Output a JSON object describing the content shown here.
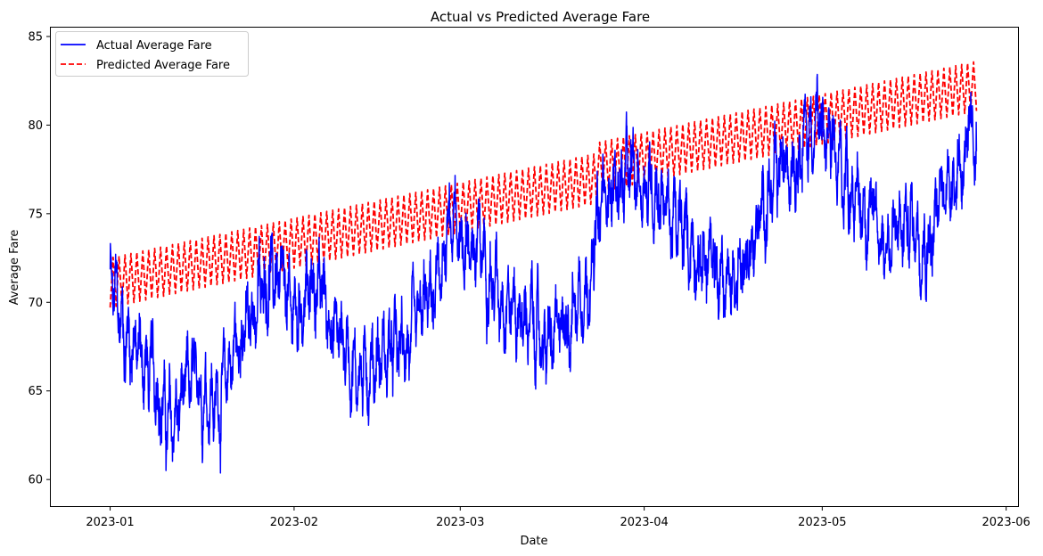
{
  "chart_data": {
    "type": "line",
    "title": "Actual vs Predicted Average Fare",
    "xlabel": "Date",
    "ylabel": "Average Fare",
    "x_range": [
      "2022-12-22",
      "2023-06-03"
    ],
    "xlim": [
      -10,
      153
    ],
    "ylim": [
      58.5,
      85.5
    ],
    "x_ticks": [
      {
        "day": 0,
        "label": "2023-01"
      },
      {
        "day": 31,
        "label": "2023-02"
      },
      {
        "day": 59,
        "label": "2023-03"
      },
      {
        "day": 90,
        "label": "2023-04"
      },
      {
        "day": 120,
        "label": "2023-05"
      },
      {
        "day": 151,
        "label": "2023-06"
      }
    ],
    "y_ticks": [
      60,
      65,
      70,
      75,
      80,
      85
    ],
    "grid": false,
    "legend_position": "top-left",
    "series": [
      {
        "name": "Actual Average Fare",
        "color": "#0000ff",
        "style": "solid",
        "x_start": "2023-01-01",
        "x_end": "2023-05-27",
        "frequency": "hourly",
        "anchor_points": [
          {
            "x": "2023-01-01",
            "y": 70.8
          },
          {
            "x": "2023-01-04",
            "y": 68.0
          },
          {
            "x": "2023-01-08",
            "y": 66.0
          },
          {
            "x": "2023-01-11",
            "y": 63.0
          },
          {
            "x": "2023-01-15",
            "y": 65.5
          },
          {
            "x": "2023-01-19",
            "y": 64.5
          },
          {
            "x": "2023-01-23",
            "y": 68.0
          },
          {
            "x": "2023-01-28",
            "y": 71.5
          },
          {
            "x": "2023-02-01",
            "y": 69.5
          },
          {
            "x": "2023-02-05",
            "y": 71.0
          },
          {
            "x": "2023-02-08",
            "y": 68.5
          },
          {
            "x": "2023-02-12",
            "y": 66.0
          },
          {
            "x": "2023-02-16",
            "y": 67.0
          },
          {
            "x": "2023-02-20",
            "y": 67.5
          },
          {
            "x": "2023-02-24",
            "y": 70.0
          },
          {
            "x": "2023-02-28",
            "y": 74.0
          },
          {
            "x": "2023-03-04",
            "y": 73.0
          },
          {
            "x": "2023-03-08",
            "y": 70.5
          },
          {
            "x": "2023-03-12",
            "y": 69.0
          },
          {
            "x": "2023-03-16",
            "y": 67.5
          },
          {
            "x": "2023-03-19",
            "y": 69.0
          },
          {
            "x": "2023-03-22",
            "y": 71.0
          },
          {
            "x": "2023-03-26",
            "y": 76.5
          },
          {
            "x": "2023-03-30",
            "y": 77.0
          },
          {
            "x": "2023-04-03",
            "y": 76.5
          },
          {
            "x": "2023-04-07",
            "y": 74.0
          },
          {
            "x": "2023-04-11",
            "y": 72.5
          },
          {
            "x": "2023-04-15",
            "y": 71.0
          },
          {
            "x": "2023-04-19",
            "y": 73.0
          },
          {
            "x": "2023-04-22",
            "y": 76.0
          },
          {
            "x": "2023-04-26",
            "y": 78.5
          },
          {
            "x": "2023-04-30",
            "y": 80.0
          },
          {
            "x": "2023-05-04",
            "y": 77.5
          },
          {
            "x": "2023-05-08",
            "y": 75.5
          },
          {
            "x": "2023-05-12",
            "y": 73.5
          },
          {
            "x": "2023-05-16",
            "y": 74.5
          },
          {
            "x": "2023-05-19",
            "y": 73.5
          },
          {
            "x": "2023-05-22",
            "y": 77.0
          },
          {
            "x": "2023-05-27",
            "y": 79.0
          }
        ],
        "min": {
          "x": "2023-01-10",
          "y": 59.8
        },
        "max": {
          "x": "2023-04-30",
          "y": 84.1
        }
      },
      {
        "name": "Predicted Average Fare",
        "color": "#ff0000",
        "style": "dashed",
        "x_start": "2023-01-01",
        "x_end": "2023-05-27",
        "frequency": "hourly",
        "band_center_start": 71.1,
        "band_center_end": 82.2,
        "band_half_width": 1.4,
        "band_segments": [
          {
            "from": "2023-01-01",
            "to": "2023-03-24",
            "center_start": 71.1,
            "center_end": 77.0
          },
          {
            "from": "2023-03-24",
            "to": "2023-05-27",
            "center_start": 77.6,
            "center_end": 82.2
          }
        ]
      }
    ]
  }
}
